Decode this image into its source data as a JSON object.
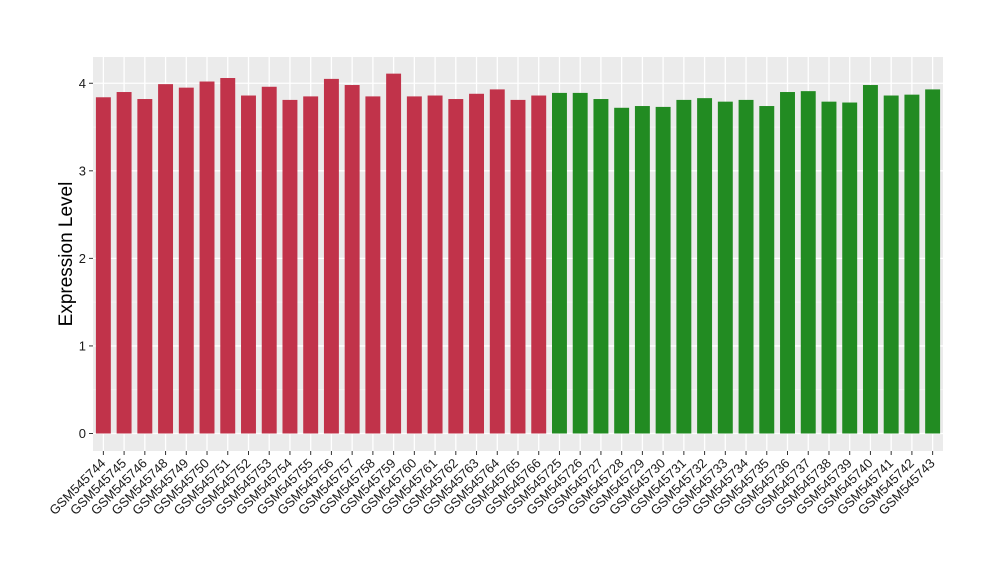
{
  "chart_data": {
    "type": "bar",
    "xlabel": "",
    "ylabel": "Expression Level",
    "ylim": [
      -0.2,
      4.3
    ],
    "yticks": [
      0,
      1,
      2,
      3,
      4
    ],
    "ytick_labels": [
      "0",
      "1",
      "2",
      "3",
      "4"
    ],
    "grid": true,
    "legend": "none",
    "group_colors": [
      "#c1334a",
      "#228b22"
    ],
    "categories": [
      "GSM545744",
      "GSM545745",
      "GSM545746",
      "GSM545748",
      "GSM545749",
      "GSM545750",
      "GSM545751",
      "GSM545752",
      "GSM545753",
      "GSM545754",
      "GSM545755",
      "GSM545756",
      "GSM545757",
      "GSM545758",
      "GSM545759",
      "GSM545760",
      "GSM545761",
      "GSM545762",
      "GSM545763",
      "GSM545764",
      "GSM545765",
      "GSM545766",
      "GSM545725",
      "GSM545726",
      "GSM545727",
      "GSM545728",
      "GSM545729",
      "GSM545730",
      "GSM545731",
      "GSM545732",
      "GSM545733",
      "GSM545734",
      "GSM545735",
      "GSM545736",
      "GSM545737",
      "GSM545738",
      "GSM545739",
      "GSM545740",
      "GSM545741",
      "GSM545742",
      "GSM545743"
    ],
    "values": [
      3.84,
      3.9,
      3.82,
      3.99,
      3.95,
      4.02,
      4.06,
      3.86,
      3.96,
      3.81,
      3.85,
      4.05,
      3.98,
      3.85,
      4.11,
      3.85,
      3.86,
      3.82,
      3.88,
      3.93,
      3.81,
      3.86,
      3.89,
      3.89,
      3.82,
      3.72,
      3.74,
      3.73,
      3.81,
      3.83,
      3.79,
      3.81,
      3.74,
      3.9,
      3.91,
      3.79,
      3.78,
      3.98,
      3.86,
      3.87,
      3.93
    ],
    "groups": [
      0,
      0,
      0,
      0,
      0,
      0,
      0,
      0,
      0,
      0,
      0,
      0,
      0,
      0,
      0,
      0,
      0,
      0,
      0,
      0,
      0,
      0,
      1,
      1,
      1,
      1,
      1,
      1,
      1,
      1,
      1,
      1,
      1,
      1,
      1,
      1,
      1,
      1,
      1,
      1,
      1
    ]
  }
}
